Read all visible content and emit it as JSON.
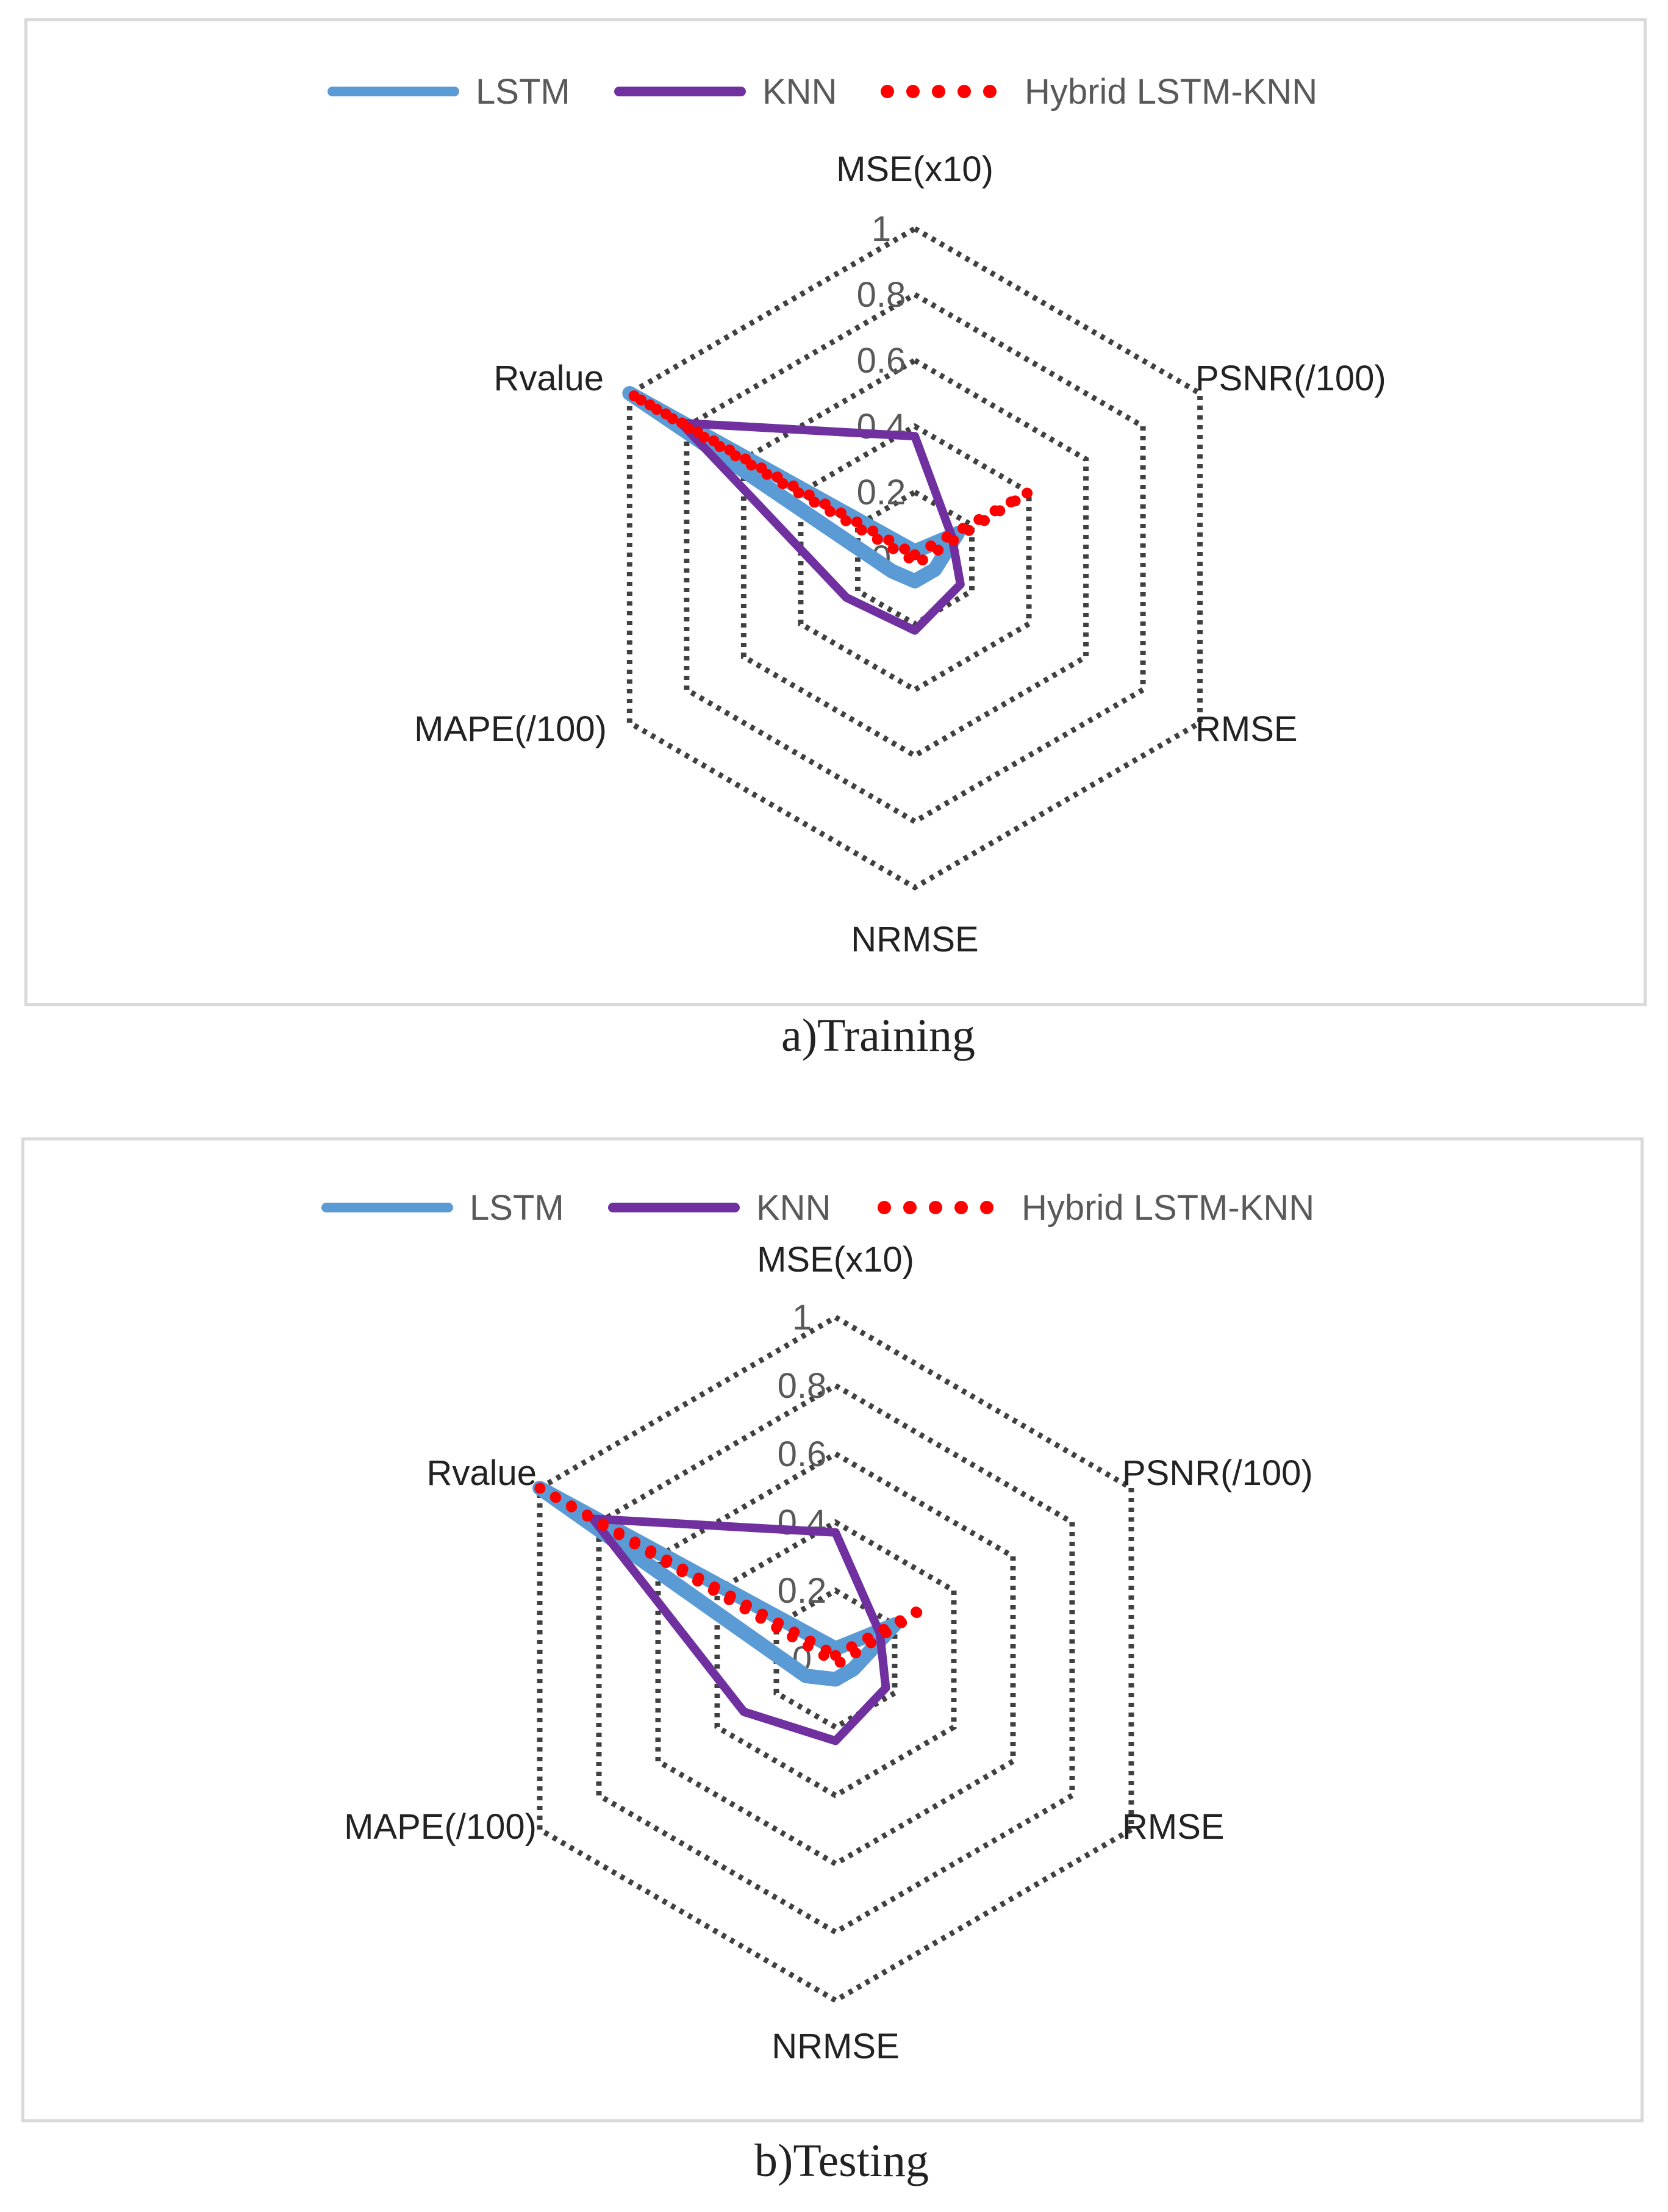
{
  "colors": {
    "lstm": "#5b9bd5",
    "knn": "#7030a0",
    "hybrid": "#ff0000",
    "grid": "#404040"
  },
  "chart_data": [
    {
      "type": "radar",
      "title": "a)Training",
      "axes": [
        "MSE(x10)",
        "PSNR(/100)",
        "RMSE",
        "NRMSE",
        "MAPE(/100)",
        "Rvalue"
      ],
      "rlim": [
        0,
        1
      ],
      "ticks": [
        "0",
        "0.2",
        "0.4",
        "0.6",
        "0.8",
        "1"
      ],
      "legend_position": "top",
      "series": [
        {
          "name": "LSTM",
          "values": [
            0.02,
            0.15,
            0.07,
            0.07,
            0.08,
            1.0
          ]
        },
        {
          "name": "KNN",
          "values": [
            0.37,
            0.13,
            0.16,
            0.22,
            0.24,
            0.82
          ]
        },
        {
          "name": "Hybrid LSTM-KNN",
          "values": [
            0.01,
            0.4,
            0.02,
            0.02,
            0.01,
            1.0
          ]
        }
      ]
    },
    {
      "type": "radar",
      "title": "b)Testing",
      "axes": [
        "MSE(x10)",
        "PSNR(/100)",
        "RMSE",
        "NRMSE",
        "MAPE(/100)",
        "Rvalue"
      ],
      "rlim": [
        0,
        1
      ],
      "ticks": [
        "0",
        "0.2",
        "0.4",
        "0.6",
        "0.8",
        "1"
      ],
      "legend_position": "top",
      "series": [
        {
          "name": "LSTM",
          "values": [
            0.03,
            0.2,
            0.06,
            0.06,
            0.1,
            1.0
          ]
        },
        {
          "name": "KNN",
          "values": [
            0.37,
            0.15,
            0.17,
            0.24,
            0.31,
            0.82
          ]
        },
        {
          "name": "Hybrid LSTM-KNN",
          "values": [
            0.01,
            0.3,
            0.02,
            0.01,
            0.01,
            1.0
          ]
        }
      ]
    }
  ]
}
